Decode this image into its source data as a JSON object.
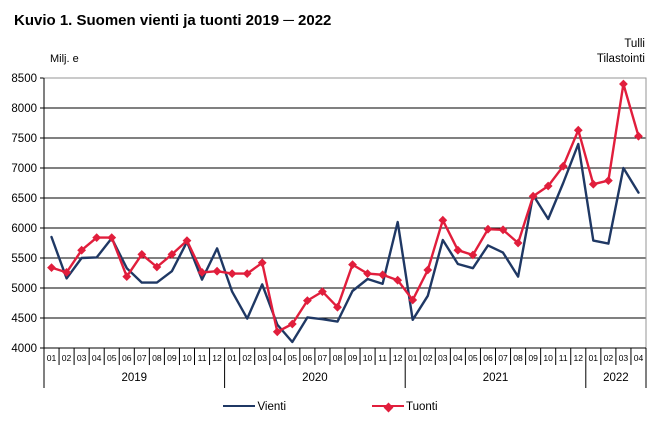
{
  "title": "Kuvio 1. Suomen vienti ja tuonti 2019 ─ 2022",
  "unit_label": "Milj. e",
  "source": {
    "line1": "Tulli",
    "line2": "Tilastointi"
  },
  "legend": {
    "vienti": "Vienti",
    "tuonti": "Tuonti"
  },
  "colors": {
    "vienti": "#1F3864",
    "tuonti": "#E11E3C",
    "grid": "#000000",
    "plot_border": "#969696",
    "axis": "#000000"
  },
  "chart_data": {
    "type": "line",
    "title": "Kuvio 1. Suomen vienti ja tuonti 2019 ─ 2022",
    "ylabel": "Milj. e",
    "xlabel": "",
    "ylim": [
      4000,
      8500
    ],
    "y_ticks": [
      4000,
      4500,
      5000,
      5500,
      6000,
      6500,
      7000,
      7500,
      8000,
      8500
    ],
    "grid": true,
    "legend_position": "bottom",
    "x_years": [
      {
        "label": "2019",
        "months": [
          "01",
          "02",
          "03",
          "04",
          "05",
          "06",
          "07",
          "08",
          "09",
          "10",
          "11",
          "12"
        ]
      },
      {
        "label": "2020",
        "months": [
          "01",
          "02",
          "03",
          "04",
          "05",
          "06",
          "07",
          "08",
          "09",
          "10",
          "11",
          "12"
        ]
      },
      {
        "label": "2021",
        "months": [
          "01",
          "02",
          "03",
          "04",
          "05",
          "06",
          "07",
          "08",
          "09",
          "10",
          "11",
          "12"
        ]
      },
      {
        "label": "2022",
        "months": [
          "01",
          "02",
          "03",
          "04"
        ]
      }
    ],
    "series": [
      {
        "name": "Vienti",
        "color": "#1F3864",
        "marker": "none",
        "values": [
          5850,
          5160,
          5500,
          5510,
          5830,
          5330,
          5090,
          5090,
          5280,
          5770,
          5140,
          5660,
          4940,
          4490,
          5060,
          4390,
          4100,
          4510,
          4480,
          4440,
          4950,
          5150,
          5070,
          6100,
          4470,
          4870,
          5800,
          5400,
          5330,
          5710,
          5590,
          5190,
          6550,
          6150,
          6750,
          7400,
          5790,
          5740,
          7000,
          6590
        ]
      },
      {
        "name": "Tuonti",
        "color": "#E11E3C",
        "marker": "diamond",
        "values": [
          5340,
          5260,
          5630,
          5840,
          5840,
          5190,
          5560,
          5350,
          5560,
          5790,
          5260,
          5280,
          5240,
          5240,
          5420,
          4270,
          4400,
          4790,
          4940,
          4680,
          5390,
          5240,
          5220,
          5130,
          4800,
          5300,
          6130,
          5630,
          5550,
          5980,
          5970,
          5750,
          6530,
          6700,
          7030,
          7630,
          6730,
          6790,
          8400,
          7530
        ]
      }
    ]
  }
}
